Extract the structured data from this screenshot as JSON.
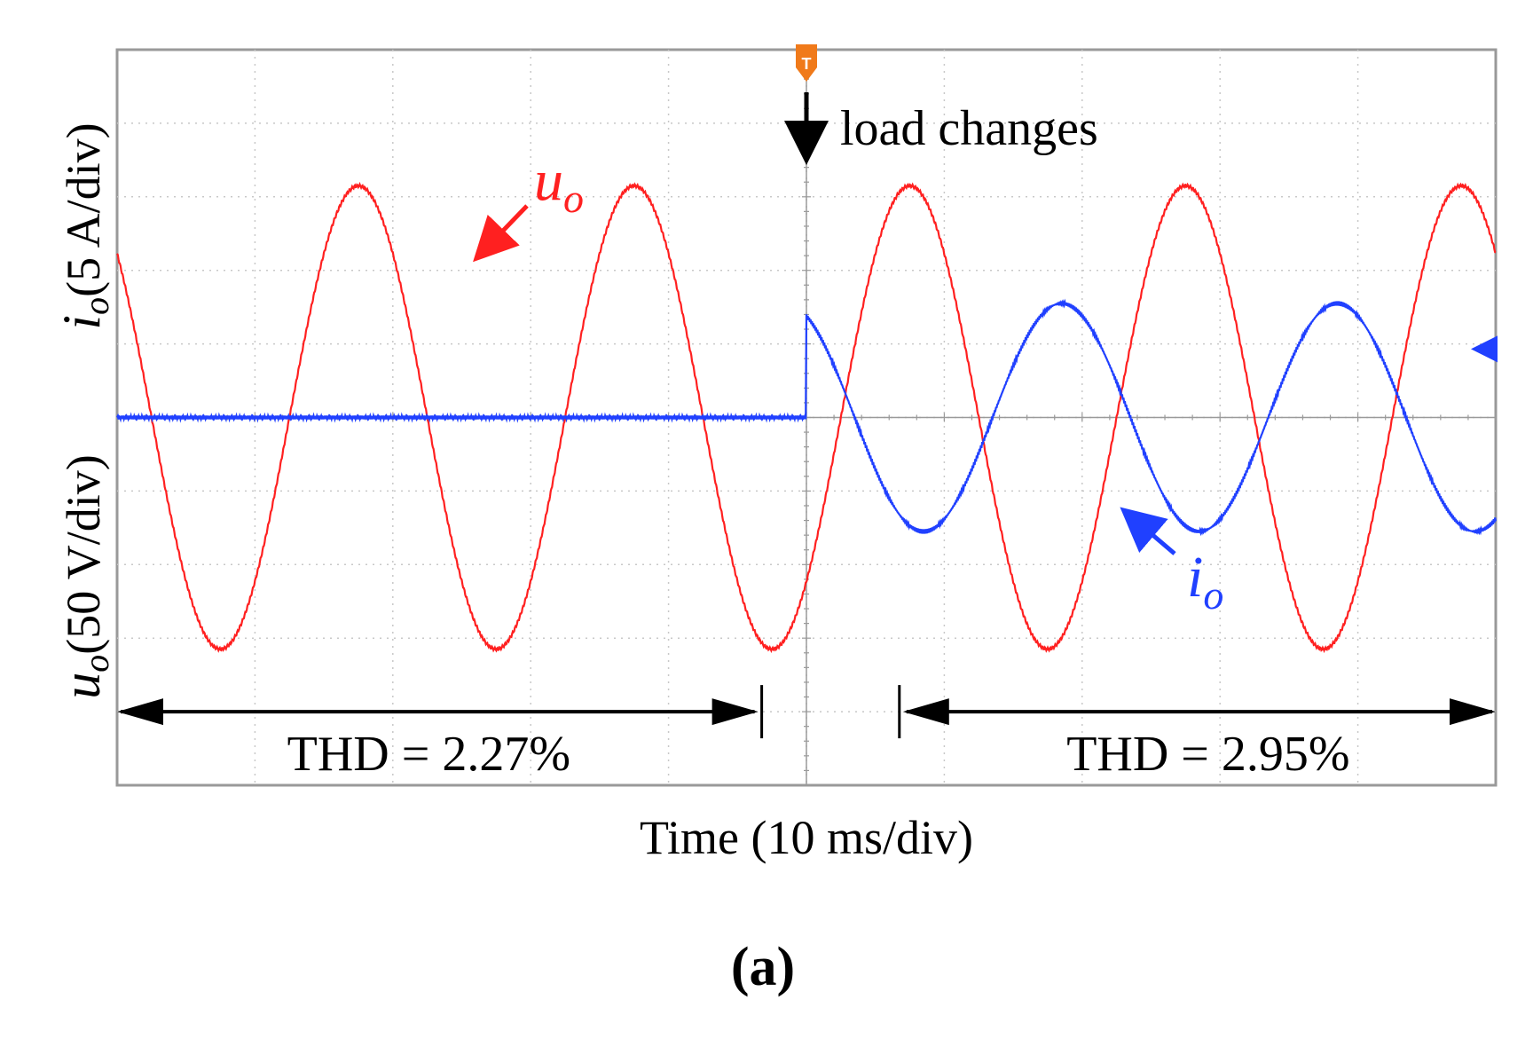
{
  "chart_data": {
    "type": "line",
    "title": "",
    "xlabel": "Time (10 ms/div)",
    "ylabel_voltage": {
      "symbol": "u",
      "subscript": "o",
      "scale": "(50 V/div)"
    },
    "ylabel_current": {
      "symbol": "i",
      "subscript": "o",
      "scale": "(5 A/div)"
    },
    "x_divisions": 10,
    "y_divisions": 10,
    "xlim": [
      0,
      100
    ],
    "ylim": [
      -5,
      5
    ],
    "grid": true,
    "trigger_marker": "T",
    "trigger_time_ms": 50,
    "series": [
      {
        "name": "u_o",
        "label_symbol": "u",
        "label_subscript": "o",
        "color": "#ff2020",
        "frequency_hz": 50,
        "amplitude_div": 3.15,
        "phase_zero_ms": -7.5,
        "note_before": "",
        "note_after": ""
      },
      {
        "name": "i_o",
        "label_symbol": "i",
        "label_subscript": "o",
        "color": "#2040ff",
        "frequency_hz": 50,
        "amplitude_div": 1.55,
        "offset_div": 0,
        "start_ms": 50,
        "phase_zero_ms": 43.5
      }
    ],
    "annotations": [
      {
        "id": "load",
        "text": "load changes",
        "at_ms": 50
      },
      {
        "id": "thd1",
        "text": "THD = 2.27%",
        "from_ms": 0,
        "to_ms": 46.5
      },
      {
        "id": "thd2",
        "text": "THD = 2.95%",
        "from_ms": 57,
        "to_ms": 100
      }
    ],
    "panel_label": "(a)"
  }
}
